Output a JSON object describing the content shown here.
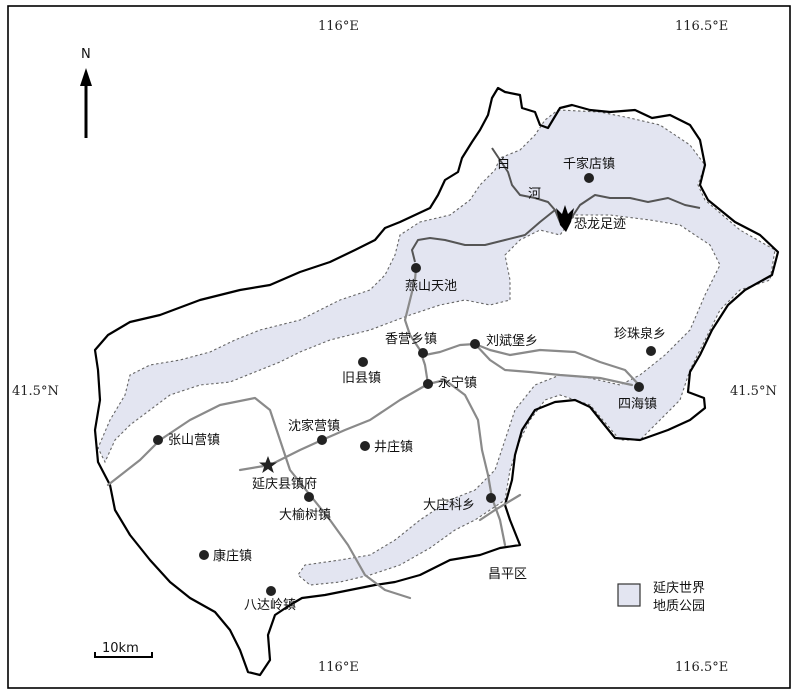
{
  "coordinates": {
    "top_116": "116°E",
    "top_1165": "116.5°E",
    "bottom_116": "116°E",
    "bottom_1165": "116.5°E",
    "left_415": "41.5°N",
    "right_415": "41.5°N"
  },
  "north_label": "N",
  "scale_label": "10km",
  "river_label": [
    "白",
    "河"
  ],
  "towns": {
    "qianjiadian": "千家店镇",
    "kongluzuji": "恐龙足迹",
    "yanshantianchi": "燕山天池",
    "xiangying": "香营乡镇",
    "liubinbao": "刘斌堡乡",
    "zhenzhuquan": "珍珠泉乡",
    "jiuxian": "旧县镇",
    "yongning": "永宁镇",
    "sihai": "四海镇",
    "zhangshanying": "张山营镇",
    "shenjiaying": "沈家营镇",
    "jingzhuang": "井庄镇",
    "yanqing": "延庆县镇府",
    "dayushu": "大榆树镇",
    "dazhuangke": "大庄科乡",
    "kangzhuang": "康庄镇",
    "badaling": "八达岭镇",
    "changping": "昌平区"
  },
  "legend": {
    "line1": "延庆世界",
    "line2": "地质公园",
    "color": "#e3e5f1"
  },
  "colors": {
    "park_fill": "#e3e5f1",
    "boundary": "#000000",
    "road": "#8a8a8a",
    "river": "#555555"
  }
}
